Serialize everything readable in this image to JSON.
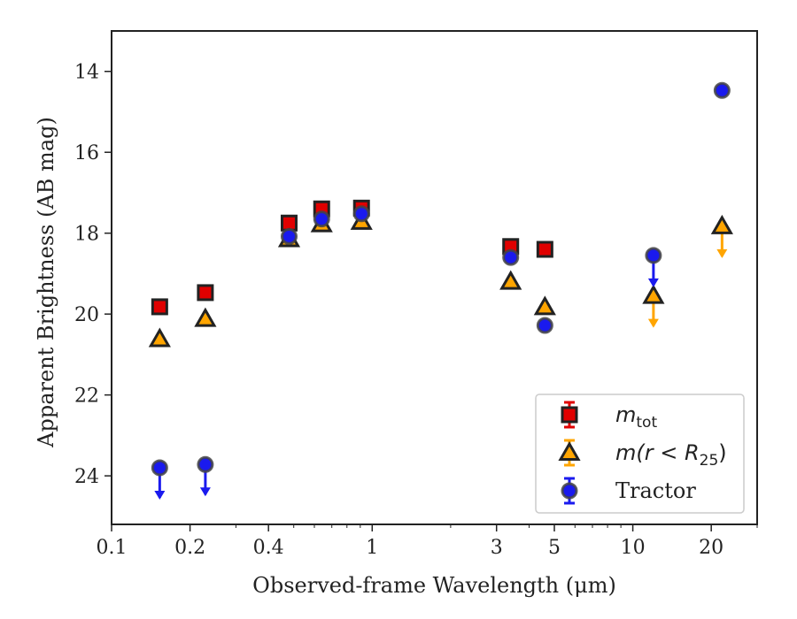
{
  "chart_data": {
    "type": "scatter",
    "title": "",
    "xlabel": "Observed-frame Wavelength (μm)",
    "ylabel": "Apparent Brightness (AB mag)",
    "xscale": "log",
    "yinverted": true,
    "xlim": [
      0.1,
      30
    ],
    "ylim": [
      25.2,
      13.0
    ],
    "grid": false,
    "legend_position": "bottom-right",
    "x_ticks": [
      {
        "value": 0.1,
        "label": "0.1"
      },
      {
        "value": 0.2,
        "label": "0.2"
      },
      {
        "value": 0.4,
        "label": "0.4"
      },
      {
        "value": 1,
        "label": "1"
      },
      {
        "value": 3,
        "label": "3"
      },
      {
        "value": 5,
        "label": "5"
      },
      {
        "value": 10,
        "label": "10"
      },
      {
        "value": 20,
        "label": "20"
      }
    ],
    "y_ticks": [
      {
        "value": 14,
        "label": "14"
      },
      {
        "value": 16,
        "label": "16"
      },
      {
        "value": 18,
        "label": "18"
      },
      {
        "value": 20,
        "label": "20"
      },
      {
        "value": 22,
        "label": "22"
      },
      {
        "value": 24,
        "label": "24"
      }
    ],
    "series": [
      {
        "legend_main": "m",
        "legend_sub": "tot",
        "legend_text": "m_tot",
        "marker": "square",
        "color": "#e00000",
        "edge": "#222222",
        "points": [
          {
            "x": 0.153,
            "y": 19.82
          },
          {
            "x": 0.229,
            "y": 19.47
          },
          {
            "x": 0.48,
            "y": 17.75
          },
          {
            "x": 0.64,
            "y": 17.4
          },
          {
            "x": 0.91,
            "y": 17.38
          },
          {
            "x": 3.4,
            "y": 18.33
          },
          {
            "x": 4.6,
            "y": 18.4
          }
        ]
      },
      {
        "legend_main": "m(r < R",
        "legend_sub": "25",
        "legend_tail": ")",
        "legend_text": "m(r < R_25)",
        "marker": "triangle",
        "color": "#ffa500",
        "edge": "#222222",
        "points": [
          {
            "x": 0.153,
            "y": 20.62
          },
          {
            "x": 0.229,
            "y": 20.12
          },
          {
            "x": 0.48,
            "y": 18.15
          },
          {
            "x": 0.64,
            "y": 17.78
          },
          {
            "x": 0.91,
            "y": 17.72
          },
          {
            "x": 3.4,
            "y": 19.2
          },
          {
            "x": 4.6,
            "y": 19.83
          },
          {
            "x": 12.0,
            "y": 19.55,
            "upper_limit": true
          },
          {
            "x": 22.0,
            "y": 17.83,
            "upper_limit": true
          }
        ]
      },
      {
        "legend_main": "Tractor",
        "legend_text": "Tractor",
        "marker": "circle",
        "color": "#1a1aee",
        "edge": "#444444",
        "points": [
          {
            "x": 0.153,
            "y": 23.8,
            "upper_limit": true
          },
          {
            "x": 0.229,
            "y": 23.72,
            "upper_limit": true
          },
          {
            "x": 0.48,
            "y": 18.08
          },
          {
            "x": 0.64,
            "y": 17.65
          },
          {
            "x": 0.91,
            "y": 17.52
          },
          {
            "x": 3.4,
            "y": 18.6
          },
          {
            "x": 4.6,
            "y": 20.28
          },
          {
            "x": 12.0,
            "y": 18.55,
            "upper_limit": true
          },
          {
            "x": 22.0,
            "y": 14.47
          }
        ]
      }
    ]
  }
}
